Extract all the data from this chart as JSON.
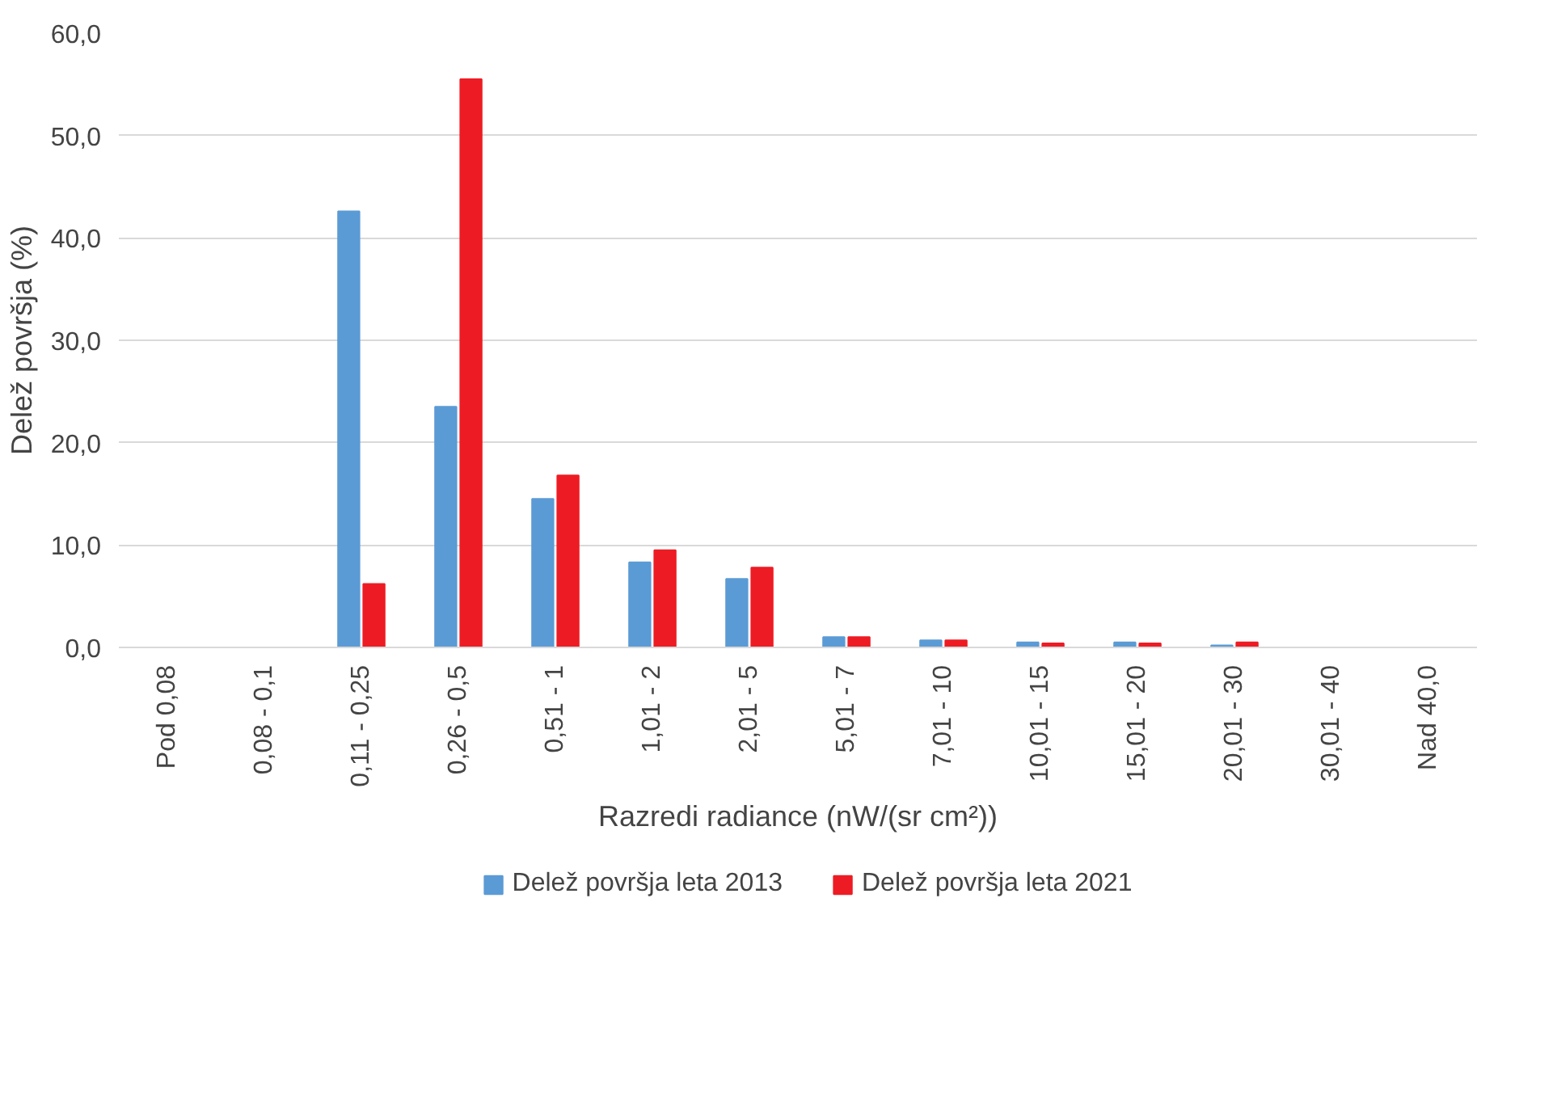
{
  "chart_data": {
    "type": "bar",
    "xlabel": "Razredi radiance (nW/(sr cm²))",
    "ylabel": "Delež površja (%)",
    "categories": [
      "Pod 0,08",
      "0,08 - 0,1",
      "0,11 - 0,25",
      "0,26 - 0,5",
      "0,51 - 1",
      "1,01 - 2",
      "2,01 - 5",
      "5,01 - 7",
      "7,01 - 10",
      "10,01 - 15",
      "15,01 - 20",
      "20,01 - 30",
      "30,01 - 40",
      "Nad 40,0"
    ],
    "series": [
      {
        "name": "Delež površja leta 2013",
        "color": "#5b9bd5",
        "values": [
          0,
          0,
          42.6,
          23.5,
          14.5,
          8.3,
          6.7,
          1.0,
          0.7,
          0.5,
          0.5,
          0.2,
          0,
          0
        ]
      },
      {
        "name": "Delež površja leta 2021",
        "color": "#ed1c24",
        "values": [
          0,
          0,
          6.2,
          55.5,
          16.8,
          9.5,
          7.8,
          1.0,
          0.7,
          0.4,
          0.4,
          0.5,
          0,
          0
        ]
      }
    ],
    "ylim": [
      0,
      60
    ],
    "yticks": [
      {
        "value": 0,
        "label": "0,0"
      },
      {
        "value": 10,
        "label": "10,0"
      },
      {
        "value": 20,
        "label": "20,0"
      },
      {
        "value": 30,
        "label": "30,0"
      },
      {
        "value": 40,
        "label": "40,0"
      },
      {
        "value": 50,
        "label": "50,0"
      },
      {
        "value": 60,
        "label": "60,0"
      }
    ],
    "grid": "y",
    "legend": "bottom"
  }
}
